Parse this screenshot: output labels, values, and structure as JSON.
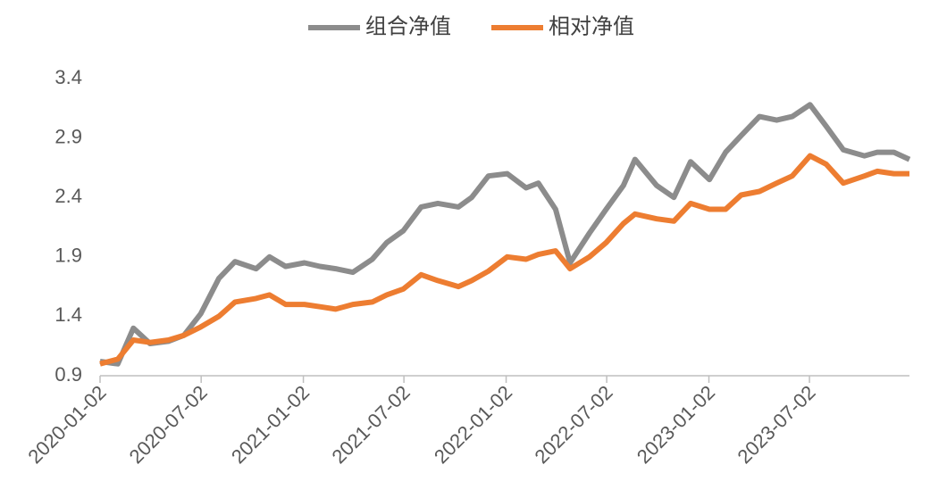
{
  "chart_data": {
    "type": "line",
    "x": [
      "2020-01-02",
      "2020-02-03",
      "2020-03-02",
      "2020-04-01",
      "2020-05-04",
      "2020-06-01",
      "2020-07-01",
      "2020-08-03",
      "2020-09-01",
      "2020-10-09",
      "2020-11-02",
      "2020-12-01",
      "2021-01-04",
      "2021-02-01",
      "2021-03-01",
      "2021-04-01",
      "2021-05-06",
      "2021-06-01",
      "2021-07-01",
      "2021-08-02",
      "2021-09-01",
      "2021-10-08",
      "2021-11-01",
      "2021-12-01",
      "2022-01-04",
      "2022-02-07",
      "2022-03-01",
      "2022-04-01",
      "2022-04-27",
      "2022-06-01",
      "2022-07-01",
      "2022-08-01",
      "2022-08-22",
      "2022-09-30",
      "2022-10-31",
      "2022-11-30",
      "2023-01-03",
      "2023-02-01",
      "2023-03-01",
      "2023-04-03",
      "2023-05-04",
      "2023-06-01",
      "2023-07-03",
      "2023-08-01",
      "2023-09-01",
      "2023-10-09",
      "2023-11-01",
      "2023-12-01",
      "2023-12-29"
    ],
    "series": [
      {
        "name": "组合净值",
        "color": "#8c8c8c",
        "values": [
          1.02,
          1.0,
          1.3,
          1.17,
          1.19,
          1.24,
          1.42,
          1.72,
          1.86,
          1.8,
          1.9,
          1.82,
          1.85,
          1.82,
          1.8,
          1.77,
          1.88,
          2.02,
          2.12,
          2.32,
          2.35,
          2.32,
          2.4,
          2.58,
          2.6,
          2.48,
          2.52,
          2.3,
          1.85,
          2.1,
          2.3,
          2.5,
          2.72,
          2.5,
          2.4,
          2.7,
          2.55,
          2.78,
          2.92,
          3.08,
          3.05,
          3.08,
          3.18,
          3.0,
          2.8,
          2.75,
          2.78,
          2.78,
          2.72
        ]
      },
      {
        "name": "相对净值",
        "color": "#ed7d31",
        "values": [
          1.0,
          1.04,
          1.2,
          1.18,
          1.2,
          1.24,
          1.31,
          1.4,
          1.52,
          1.55,
          1.58,
          1.5,
          1.5,
          1.48,
          1.46,
          1.5,
          1.52,
          1.58,
          1.63,
          1.75,
          1.7,
          1.65,
          1.7,
          1.78,
          1.9,
          1.88,
          1.92,
          1.95,
          1.8,
          1.9,
          2.02,
          2.18,
          2.26,
          2.22,
          2.2,
          2.35,
          2.3,
          2.3,
          2.42,
          2.45,
          2.52,
          2.58,
          2.75,
          2.68,
          2.52,
          2.58,
          2.62,
          2.6,
          2.6
        ]
      }
    ],
    "xlim": [
      "2020-01-02",
      "2023-12-29"
    ],
    "xticks": [
      "2020-01-02",
      "2020-07-02",
      "2021-01-02",
      "2021-07-02",
      "2022-01-02",
      "2022-07-02",
      "2023-01-02",
      "2023-07-02"
    ],
    "ylim": [
      0.9,
      3.4
    ],
    "yticks": [
      0.9,
      1.4,
      1.9,
      2.4,
      2.9,
      3.4
    ],
    "legend": "top"
  }
}
